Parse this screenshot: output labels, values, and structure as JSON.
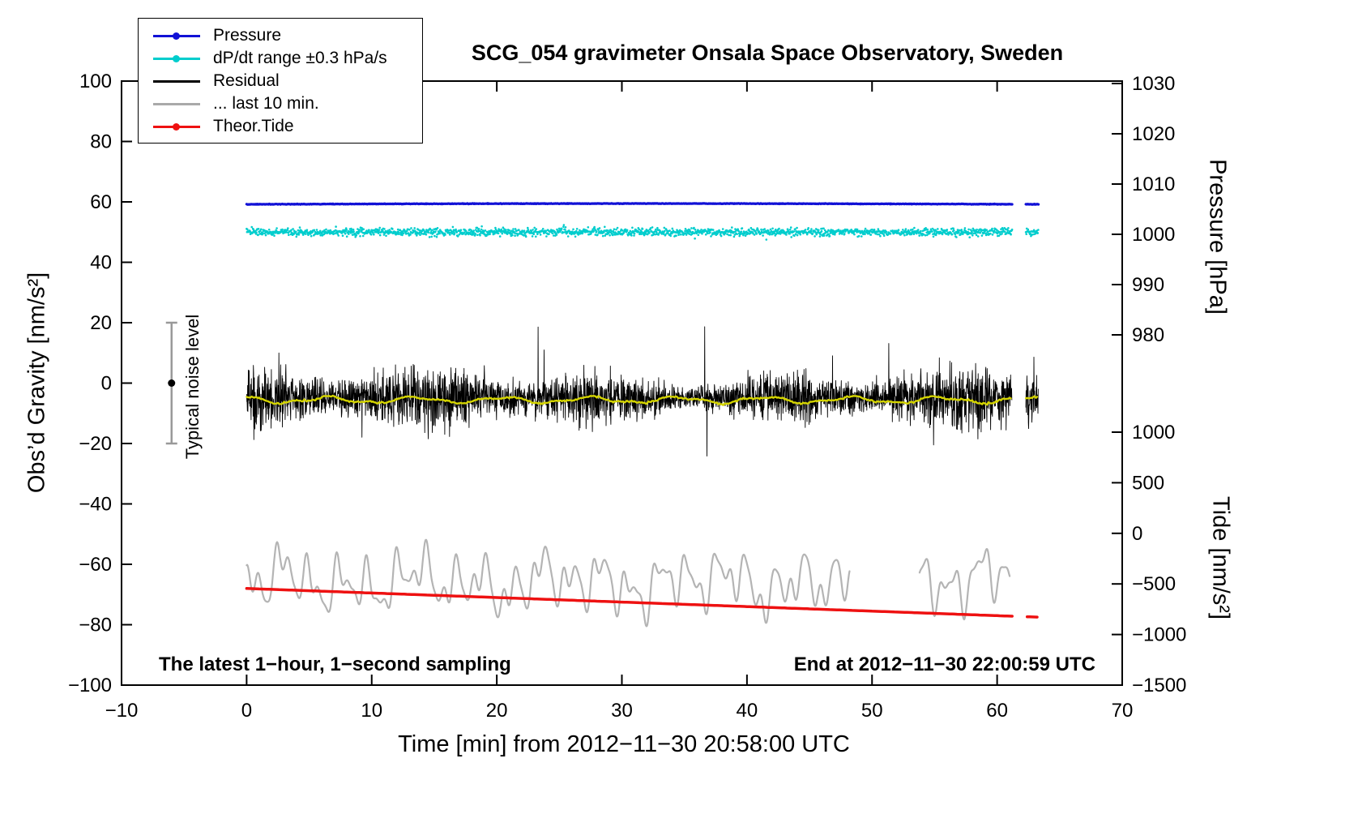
{
  "title": "SCG_054 gravimeter Onsala Space Observatory, Sweden",
  "legend": {
    "items": [
      {
        "label": "Pressure",
        "color": "#1111d6",
        "marker": "dot-line"
      },
      {
        "label": "dP/dt range ±0.3 hPa/s",
        "color": "#00cdcd",
        "marker": "dot-line"
      },
      {
        "label": "Residual",
        "color": "#000000",
        "marker": "line"
      },
      {
        "label": "... last 10 min.",
        "color": "#a9a9a9",
        "marker": "line"
      },
      {
        "label": "Theor.Tide",
        "color": "#ee1111",
        "marker": "dot-line"
      }
    ]
  },
  "annotations": {
    "noise_level_label": "Typical noise level",
    "bottom_left": "The latest 1−hour, 1−second sampling",
    "bottom_right": "End at 2012−11−30 22:00:59 UTC"
  },
  "axes": {
    "x": {
      "label": "Time [min] from 2012−11−30 20:58:00 UTC",
      "min": -10,
      "max": 70,
      "ticks": [
        -10,
        0,
        10,
        20,
        30,
        40,
        50,
        60,
        70
      ],
      "tick_labels": [
        "−10",
        "0",
        "10",
        "20",
        "30",
        "40",
        "50",
        "60",
        "70"
      ]
    },
    "y_left": {
      "label": "Obs’d Gravity [nm/s²]",
      "min": -100,
      "max": 100,
      "ticks": [
        100,
        80,
        60,
        40,
        20,
        0,
        -20,
        -40,
        -60,
        -80,
        -100
      ],
      "tick_labels": [
        "100",
        "80",
        "60",
        "40",
        "20",
        "0",
        "−20",
        "−40",
        "−60",
        "−80",
        "−100"
      ]
    },
    "y_right_pressure": {
      "label": "Pressure [hPa]",
      "ticks": [
        1030,
        1020,
        1010,
        1000,
        990,
        980
      ],
      "tick_labels": [
        "1030",
        "1020",
        "1010",
        "1000",
        "990",
        "980"
      ]
    },
    "y_right_tide": {
      "label": "Tide [nm/s²]",
      "ticks": [
        1000,
        500,
        0,
        -500,
        -1000,
        -1500
      ],
      "tick_labels": [
        "1000",
        "500",
        "0",
        "−500",
        "−1000",
        "−1500"
      ]
    }
  },
  "chart_data": {
    "type": "line",
    "title": "SCG_054 gravimeter Onsala Space Observatory, Sweden",
    "x_unit": "minutes since 2012-11-30 20:58:00 UTC",
    "x_range": [
      0,
      63.3
    ],
    "data_gap_x": [
      61.2,
      62.3
    ],
    "grid": false,
    "legend_position": "top-left",
    "series": [
      {
        "name": "Pressure",
        "color": "#1111d6",
        "style": "line+dot",
        "axis": "right-pressure",
        "segments": [
          [
            0,
            61.2
          ],
          [
            62.3,
            63.3
          ]
        ],
        "baseline_left_axis": 59.2,
        "approx_value_hPa": 1006,
        "description": "nearly constant barometric pressure ≈ 1006 hPa"
      },
      {
        "name": "dP/dt range ±0.3 hPa/s",
        "color": "#00cdcd",
        "style": "scatter",
        "segments": [
          [
            0,
            61.2
          ],
          [
            62.3,
            63.3
          ]
        ],
        "baseline_left_axis": 50,
        "scatter_spread": 1.0,
        "description": "dense scatter band of pressure rate-of-change"
      },
      {
        "name": "Residual",
        "color": "#000000",
        "style": "line",
        "segments": [
          [
            0,
            61.2
          ],
          [
            62.3,
            63.3
          ]
        ],
        "baseline_left_axis": -5,
        "typical_spread": 7,
        "max": 20,
        "min": -31,
        "description": "1-second gravity residual, high-frequency noise"
      },
      {
        "name": "Residual smoothed",
        "color": "#d4d400",
        "style": "line",
        "segments": [
          [
            0,
            61.2
          ],
          [
            62.3,
            63.3
          ]
        ],
        "baseline_left_axis": -5.6,
        "description": "yellow smoothed residual overlaid on black trace"
      },
      {
        "name": "... last 10 min.",
        "color": "#b4b4b4",
        "style": "line",
        "segments": [
          [
            0,
            48.2
          ],
          [
            53.8,
            61.0
          ]
        ],
        "baseline_left_axis": -66,
        "amplitude": 14,
        "description": "gray low-frequency wiggles of the last 10 minutes"
      },
      {
        "name": "Theor.Tide",
        "color": "#ee1111",
        "style": "line+dot",
        "axis": "right-tide",
        "segments": [
          [
            0,
            61.3
          ],
          [
            62.4,
            63.3
          ]
        ],
        "start_left_axis": -68,
        "end_left_axis": -77.5,
        "tide_axis_start": -550,
        "tide_axis_end": -810,
        "description": "theoretical tide, slowly decreasing straight line"
      }
    ],
    "noise_level_bar": {
      "x": -6,
      "y_center": 0,
      "half_range": 20,
      "bar_color": "#999999",
      "dot_color": "#000000"
    }
  }
}
